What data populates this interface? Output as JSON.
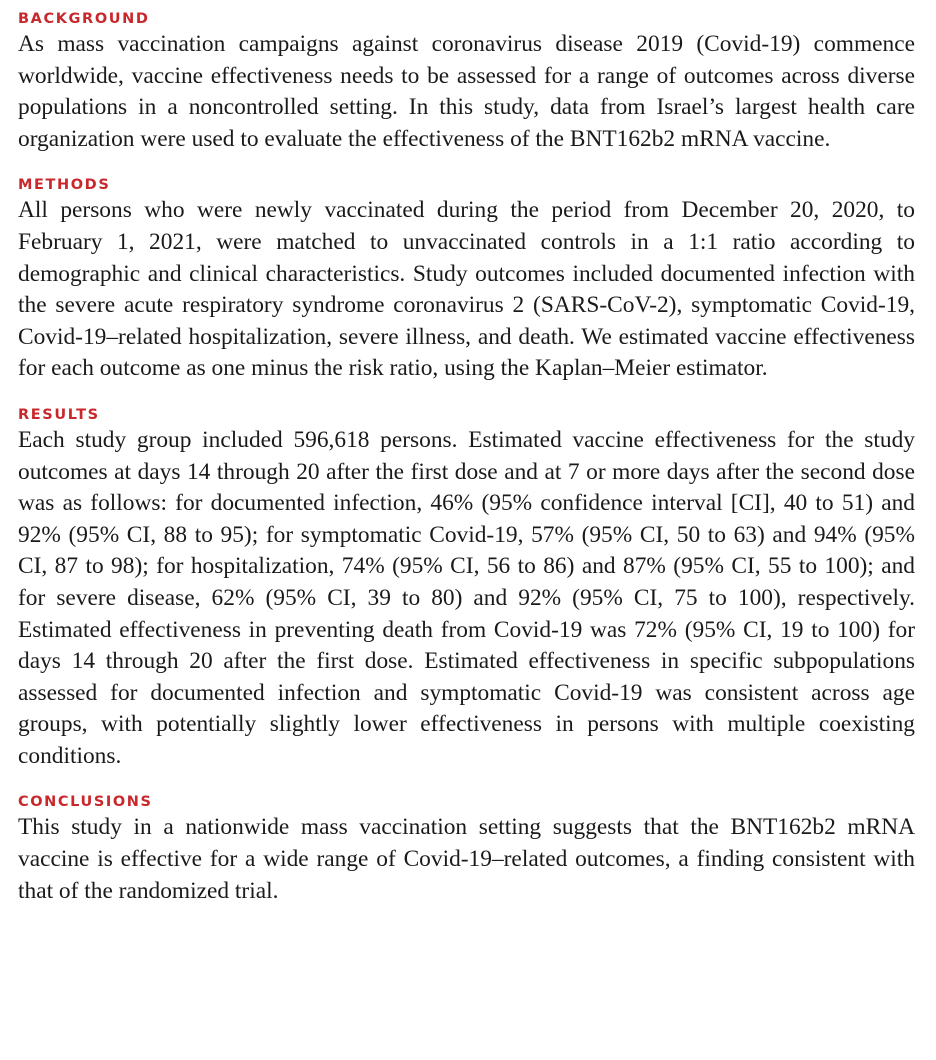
{
  "sections": {
    "background": {
      "heading": "BACKGROUND",
      "text": "As mass vaccination campaigns against coronavirus disease 2019 (Covid-19) commence worldwide, vaccine effectiveness needs to be assessed for a range of outcomes across diverse populations in a noncontrolled setting. In this study, data from Israel’s largest health care organization were used to evaluate the effectiveness of the BNT162b2 mRNA vaccine."
    },
    "methods": {
      "heading": "METHODS",
      "text": "All persons who were newly vaccinated during the period from December 20, 2020, to February 1, 2021, were matched to unvaccinated controls in a 1:1 ratio according to demographic and clinical characteristics. Study outcomes included documented infection with the severe acute respiratory syndrome coronavirus 2 (SARS-CoV-2), symptomatic Covid-19, Covid-19–related hospitalization, severe illness, and death. We estimated vaccine effectiveness for each outcome as one minus the risk ratio, using the Kaplan–Meier estimator."
    },
    "results": {
      "heading": "RESULTS",
      "text": "Each study group included 596,618 persons. Estimated vaccine effectiveness for the study outcomes at days 14 through 20 after the first dose and at 7 or more days after the second dose was as follows: for documented infection, 46% (95% confidence interval [CI], 40 to 51) and 92% (95% CI, 88 to 95); for symptomatic Covid-19, 57% (95% CI, 50 to 63) and 94% (95% CI, 87 to 98); for hospitalization, 74% (95% CI, 56 to 86) and 87% (95% CI, 55 to 100); and for severe disease, 62% (95% CI, 39 to 80) and 92% (95% CI, 75 to 100), respectively. Estimated effectiveness in preventing death from Covid-19 was 72% (95% CI, 19 to 100) for days 14 through 20 after the first dose. Estimated effectiveness in specific subpopulations assessed for documented infection and symptomatic Covid-19 was consistent across age groups, with potentially slightly lower effectiveness in persons with multiple coexisting conditions."
    },
    "conclusions": {
      "heading": "CONCLUSIONS",
      "text": "This study in a nationwide mass vaccination setting suggests that the BNT162b2 mRNA vaccine is effective for a wide range of Covid-19–related outcomes, a finding consistent with that of the randomized trial."
    }
  },
  "colors": {
    "heading": "#c8282c",
    "body_text": "#1a1a1a",
    "background": "#ffffff"
  }
}
